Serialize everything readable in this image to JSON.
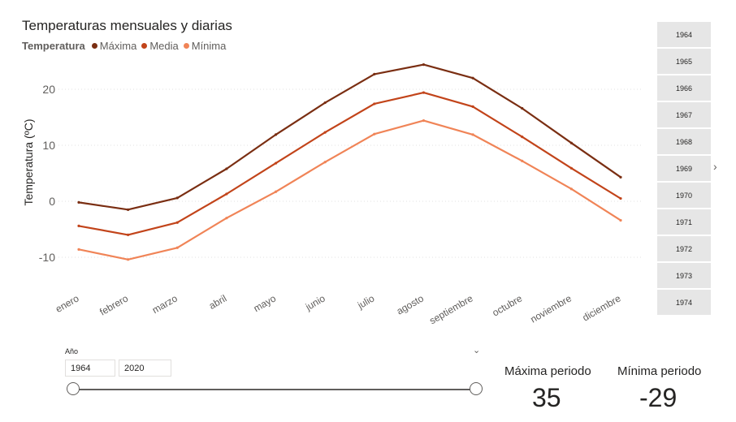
{
  "chart_data": {
    "type": "line",
    "title": "Temperaturas mensuales y diarias",
    "legend_title": "Temperatura",
    "ylabel": "Temperatura (ºC)",
    "xlabel": "",
    "categories": [
      "enero",
      "febrero",
      "marzo",
      "abril",
      "mayo",
      "junio",
      "julio",
      "agosto",
      "septiembre",
      "octubre",
      "noviembre",
      "diciembre"
    ],
    "yticks": [
      "20",
      "10",
      "0",
      "-10"
    ],
    "ylim": [
      -15,
      27
    ],
    "grid": true,
    "legend_position": "top-left",
    "series": [
      {
        "name": "Máxima",
        "color": "#7a2e12",
        "values": [
          -0.2,
          -1.5,
          0.6,
          5.8,
          11.9,
          17.6,
          22.7,
          24.4,
          22.0,
          16.6,
          10.4,
          4.3
        ]
      },
      {
        "name": "Media",
        "color": "#c2441a",
        "values": [
          -4.4,
          -6.0,
          -3.8,
          1.3,
          6.8,
          12.3,
          17.4,
          19.4,
          16.9,
          11.5,
          5.9,
          0.5
        ]
      },
      {
        "name": "Mínima",
        "color": "#f08457",
        "values": [
          -8.6,
          -10.4,
          -8.3,
          -3.0,
          1.7,
          7.0,
          12.0,
          14.4,
          11.9,
          7.2,
          2.2,
          -3.4
        ]
      }
    ]
  },
  "slicer": {
    "years": [
      "1964",
      "1965",
      "1966",
      "1967",
      "1968",
      "1969",
      "1970",
      "1971",
      "1972",
      "1973",
      "1974"
    ]
  },
  "range": {
    "label": "Año",
    "start": "1964",
    "end": "2020"
  },
  "kpis": [
    {
      "label": "Máxima periodo",
      "value": "35"
    },
    {
      "label": "Mínima periodo",
      "value": "-29"
    }
  ],
  "colors": {
    "maxima": "#7a2e12",
    "media": "#c2441a",
    "minima": "#f08457",
    "slicer_bg": "#e6e6e6"
  }
}
